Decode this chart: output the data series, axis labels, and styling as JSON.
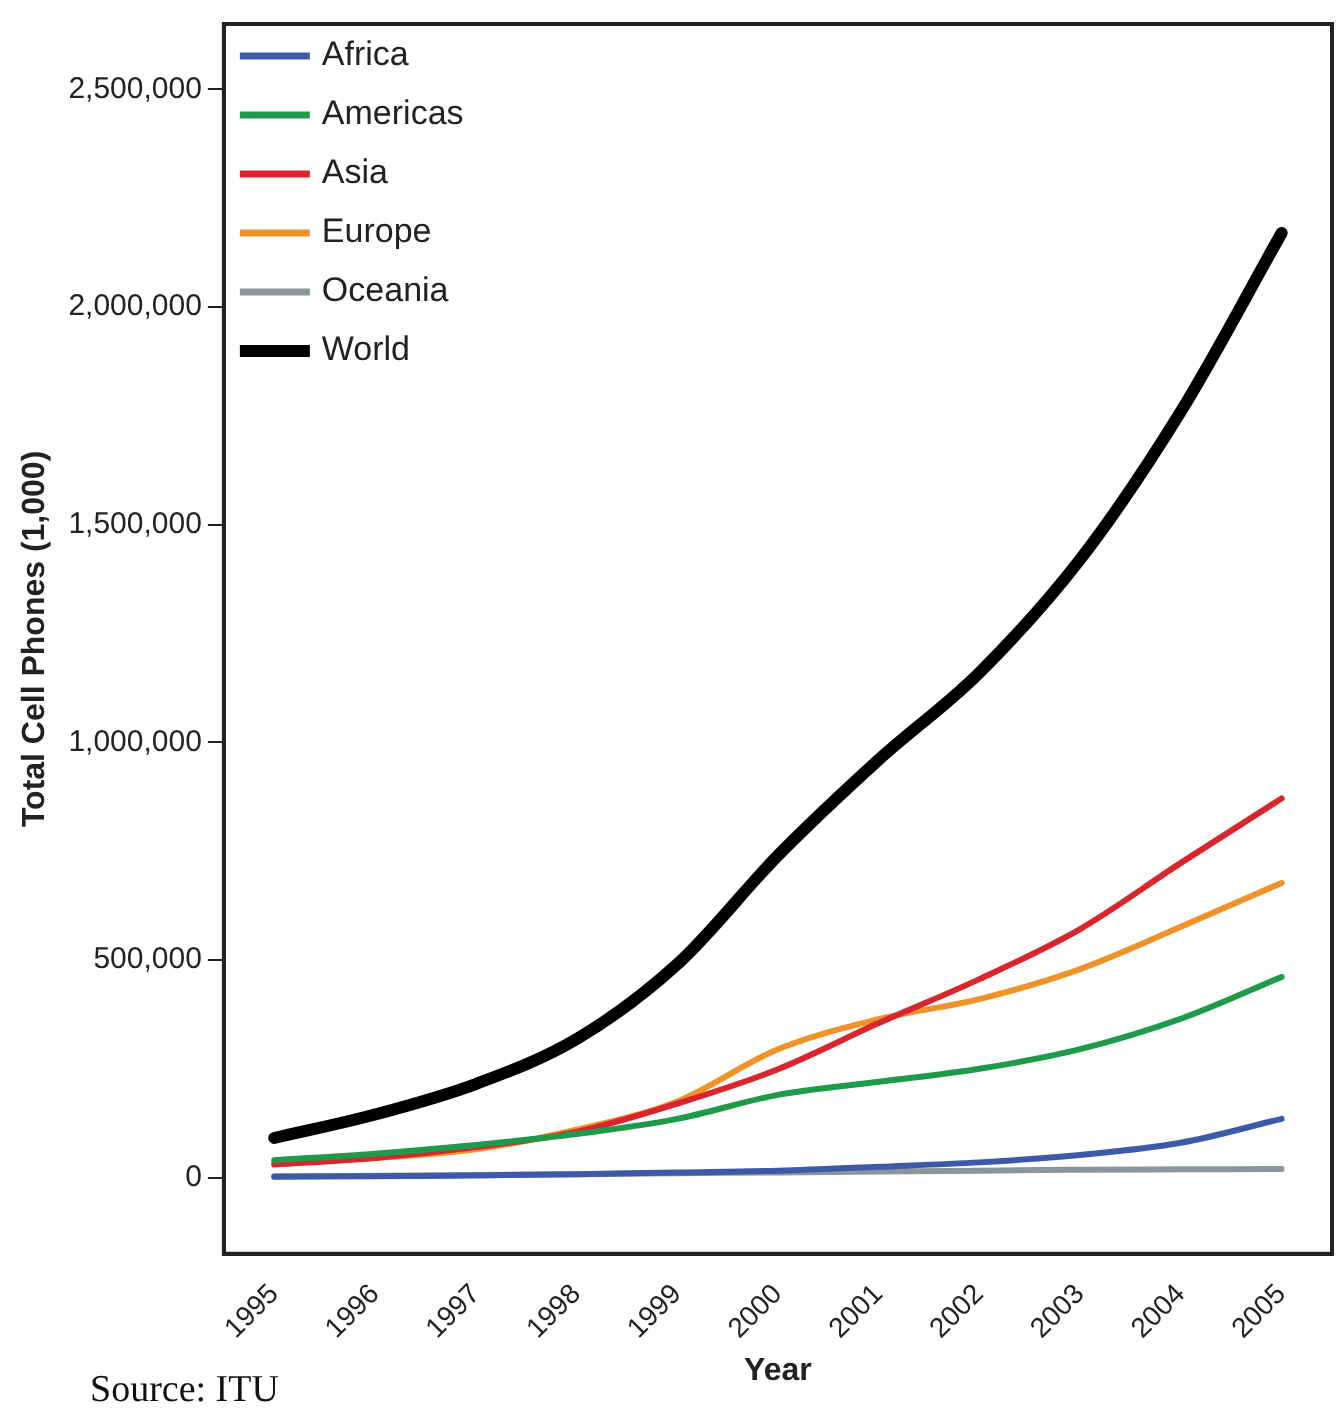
{
  "chart_data": {
    "type": "line",
    "xlabel": "Year",
    "ylabel": "Total Cell Phones (1,000)",
    "categories": [
      "1995",
      "1996",
      "1997",
      "1998",
      "1999",
      "2000",
      "2001",
      "2002",
      "2003",
      "2004",
      "2005"
    ],
    "series": [
      {
        "name": "Africa",
        "color": "#3d5aa8",
        "values": [
          2000,
          3000,
          5000,
          8000,
          12000,
          16000,
          25000,
          35000,
          52000,
          80000,
          135000
        ]
      },
      {
        "name": "Americas",
        "color": "#1e9a4a",
        "values": [
          40000,
          55000,
          75000,
          100000,
          135000,
          190000,
          220000,
          250000,
          295000,
          365000,
          461000
        ]
      },
      {
        "name": "Asia",
        "color": "#d9262e",
        "values": [
          30000,
          45000,
          70000,
          105000,
          170000,
          249000,
          355000,
          456000,
          571000,
          723000,
          871000
        ]
      },
      {
        "name": "Europe",
        "color": "#f0922a",
        "values": [
          35000,
          45000,
          65000,
          110000,
          175000,
          295000,
          364000,
          410000,
          479000,
          576000,
          677000
        ]
      },
      {
        "name": "Oceania",
        "color": "#8a9699",
        "values": [
          3000,
          4000,
          6000,
          8000,
          10000,
          12000,
          14000,
          16000,
          18000,
          19000,
          20000
        ]
      },
      {
        "name": "World",
        "color": "#000000",
        "values": [
          91000,
          145000,
          215000,
          318000,
          490000,
          740000,
          960000,
          1160000,
          1420000,
          1760000,
          2170000
        ]
      }
    ],
    "ylim": [
      -175000,
      2650000
    ],
    "yticks": [
      0,
      {
        "value": 500000,
        "label": "500,000"
      },
      {
        "value": 1000000,
        "label": "1,000,000"
      },
      {
        "value": 1500000,
        "label": "1,500,000"
      },
      {
        "value": 2000000,
        "label": "2,000,000"
      },
      {
        "value": 2500000,
        "label": "2,500,000"
      }
    ],
    "grid": false,
    "legend": "top left",
    "marker": "none",
    "line_style": "solid",
    "annotations": [
      "Source: ITU"
    ]
  }
}
